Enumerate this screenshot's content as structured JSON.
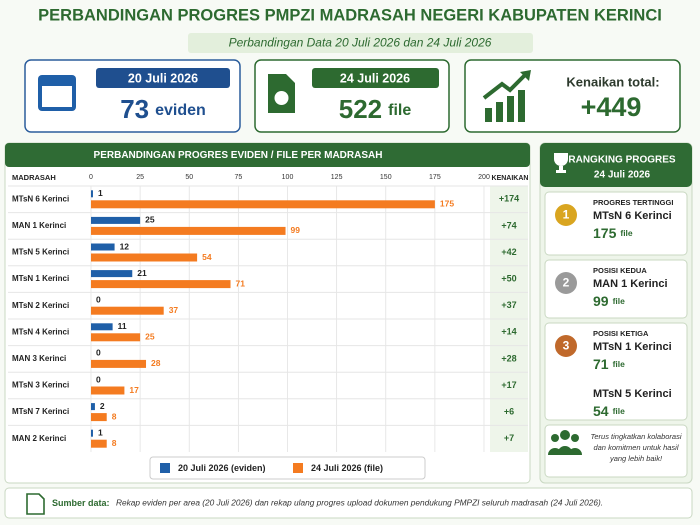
{
  "header": {
    "title": "PERBANDINGAN PROGRES PMPZI MADRASAH NEGERI KABUPATEN KERINCI",
    "subtitle": "Perbandingan Data 20 Juli 2026 dan 24 Juli 2026"
  },
  "cards": [
    {
      "label": "20 Juli 2026",
      "value": 73,
      "unit": "eviden"
    },
    {
      "label": "24 Juli 2026",
      "value": 522,
      "unit": "file"
    },
    {
      "label": "Kenaikan total:",
      "value": "+449"
    }
  ],
  "chart_data": {
    "type": "bar",
    "orientation": "horizontal",
    "title": "PERBANDINGAN PROGRES EVIDEN / FILE PER MADRASAH",
    "category_header": "MADRASAH",
    "increase_header": "KENAIKAN",
    "categories": [
      "MTsN 6 Kerinci",
      "MAN 1 Kerinci",
      "MTsN 5 Kerinci",
      "MTsN 1 Kerinci",
      "MTsN 2 Kerinci",
      "MTsN 4 Kerinci",
      "MAN 3 Kerinci",
      "MTsN 3 Kerinci",
      "MTsN 7 Kerinci",
      "MAN 2 Kerinci"
    ],
    "series": [
      {
        "name": "20 Juli 2026 (eviden)",
        "color": "#1f5fa8",
        "values": [
          1,
          25,
          12,
          21,
          0,
          11,
          0,
          0,
          2,
          1
        ]
      },
      {
        "name": "24 Juli 2026 (file)",
        "color": "#f47b20",
        "values": [
          175,
          99,
          54,
          71,
          37,
          25,
          28,
          17,
          8,
          8
        ]
      }
    ],
    "increases": [
      "+174",
      "+74",
      "+42",
      "+50",
      "+37",
      "+14",
      "+28",
      "+17",
      "+6",
      "+7"
    ],
    "xlim": [
      0,
      200
    ],
    "xticks": [
      0,
      25,
      50,
      75,
      100,
      125,
      150,
      175,
      200
    ],
    "grid": true
  },
  "ranking": {
    "title": "RANGKING PROGRES",
    "subtitle": "24 Juli 2026",
    "entries": [
      {
        "medal": "1",
        "label": "PROGRES TERTINGGI",
        "name": "MTsN 6 Kerinci",
        "value": 175,
        "unit": "file"
      },
      {
        "medal": "2",
        "label": "POSISI KEDUA",
        "name": "MAN 1 Kerinci",
        "value": 99,
        "unit": "file"
      },
      {
        "medal": "3",
        "label": "POSISI KETIGA",
        "name": "MTsN 1 Kerinci",
        "value": 71,
        "unit": "file"
      },
      {
        "name": "MTsN 5 Kerinci",
        "value": 54,
        "unit": "file"
      }
    ],
    "note": [
      "Terus tingkatkan kolaborasi",
      "dan komitmen untuk hasil",
      "yang lebih baik!"
    ]
  },
  "footer": {
    "label": "Sumber data:",
    "text": "Rekap eviden per area (20 Juli 2026) dan rekap ulang progres upload dokumen pendukung PMPZI seluruh madrasah (24 Juli 2026)."
  }
}
